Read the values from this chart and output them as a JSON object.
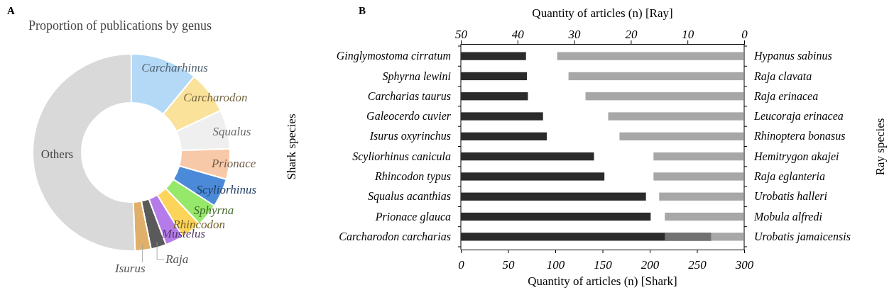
{
  "chart_data": [
    {
      "type": "donut",
      "title": "Proportion of publications by genus",
      "annotations": [
        "A"
      ],
      "categories": [
        "Carcharhinus",
        "Carcharodon",
        "Squalus",
        "Prionace",
        "Scyliorhinus",
        "Sphyrna",
        "Rhincodon",
        "Mustelus",
        "Raja",
        "Isurus",
        "Others"
      ],
      "values": [
        11,
        7,
        6.4,
        5,
        4.7,
        3.8,
        3.4,
        3,
        2.5,
        2.6,
        50.6
      ],
      "colors": [
        "#b3d9f7",
        "#fbe29a",
        "#efefef",
        "#f8c9a8",
        "#4a8ad8",
        "#96e86a",
        "#fdd45a",
        "#b57be8",
        "#5a5a5a",
        "#e0b06a",
        "#d9d9d9"
      ]
    },
    {
      "type": "bar",
      "orientation": "horizontal",
      "annotations": [
        "B"
      ],
      "xlabel": "Quantity of articles (n) [Shark]",
      "x2label": "Quantity of articles (n) [Ray]",
      "ylabel": "Shark species",
      "y2label": "Ray species",
      "categories": [
        "Ginglymostoma cirratum",
        "Sphyrna lewini",
        "Carcharias taurus",
        "Galeocerdo cuvier",
        "Isurus oxyrinchus",
        "Scyliorhinus canicula",
        "Rhincodon typus",
        "Squalus acanthias",
        "Prionace glauca",
        "Carcharodon carcharias"
      ],
      "y2_categories": [
        "Hypanus sabinus",
        "Raja clavata",
        "Raja erinacea",
        "Leucoraja erinacea",
        "Rhinoptera bonasus",
        "Hemitrygon akajei",
        "Raja eglanteria",
        "Urobatis halleri",
        "Mobula alfredi",
        "Urobatis jamaicensis"
      ],
      "series": [
        {
          "color": "#2b2b2b",
          "values": [
            69,
            70,
            71,
            87,
            91,
            141,
            152,
            196,
            201,
            265
          ]
        },
        {
          "axis": "x2",
          "color": "#8a8a8a",
          "values": [
            33,
            31,
            28,
            24,
            22,
            16,
            16,
            15,
            14,
            14
          ]
        }
      ],
      "xlim": [
        0,
        300
      ],
      "xticks": [
        0,
        50,
        100,
        150,
        200,
        250,
        300
      ],
      "x2lim": [
        50,
        0
      ],
      "x2ticks": [
        50,
        40,
        30,
        20,
        10,
        0
      ]
    }
  ]
}
